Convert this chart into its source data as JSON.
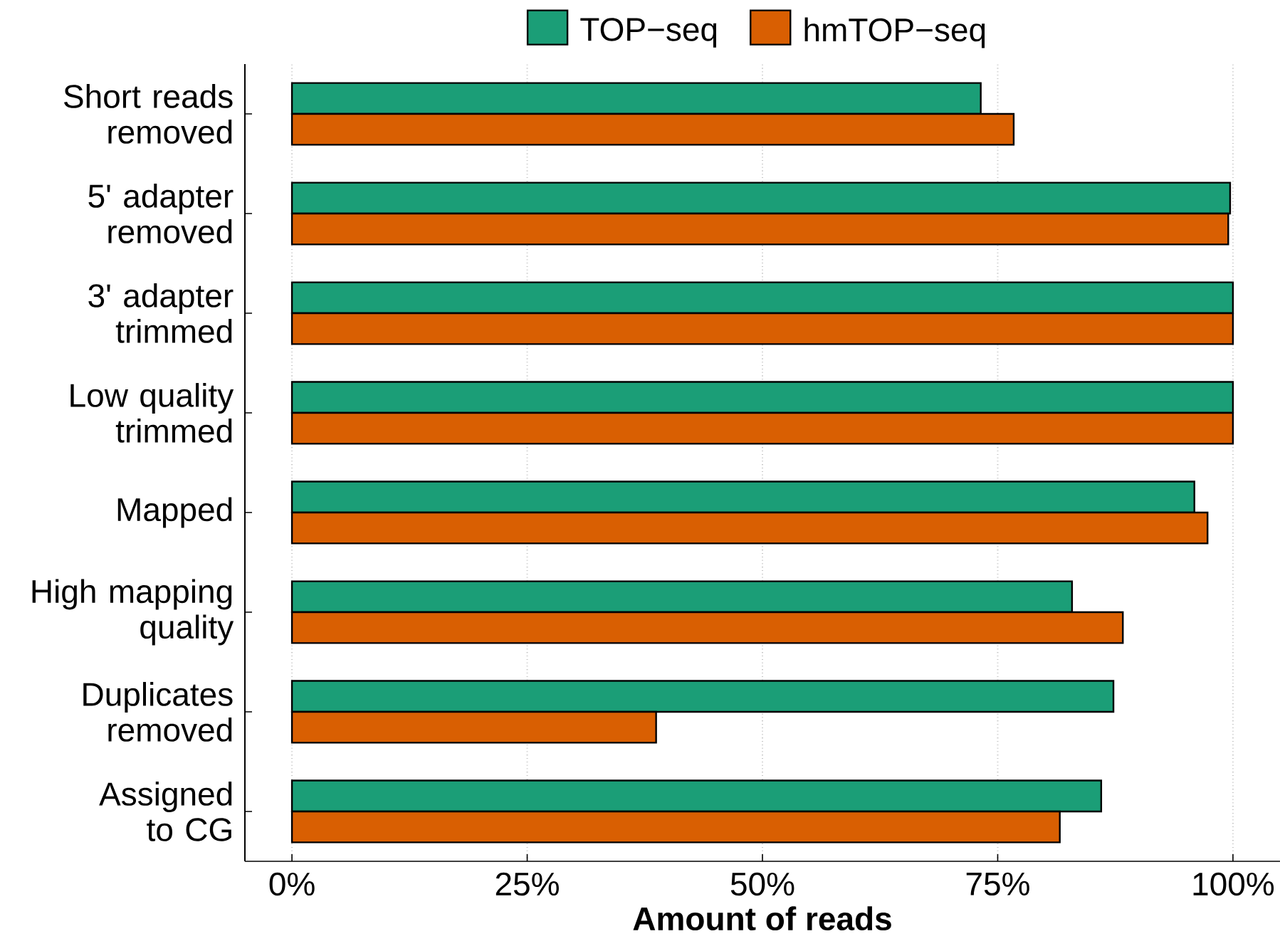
{
  "chart_data": {
    "type": "bar",
    "orientation": "horizontal",
    "xlabel": "Amount of reads",
    "categories": [
      "Short reads removed",
      "5' adapter removed",
      "3' adapter trimmed",
      "Low quality trimmed",
      "Mapped",
      "High mapping quality",
      "Duplicates removed",
      "Assigned to CG"
    ],
    "series": [
      {
        "name": "TOP−seq",
        "color": "#1b9e77",
        "values": [
          73.2,
          99.7,
          100,
          100,
          95.9,
          82.9,
          87.3,
          86.0
        ]
      },
      {
        "name": "hmTOP−seq",
        "color": "#d95f02",
        "values": [
          76.7,
          99.5,
          100,
          100,
          97.3,
          88.3,
          38.7,
          81.6
        ]
      }
    ],
    "xlim": [
      -5,
      105
    ],
    "xticks": [
      {
        "value": 0,
        "label": "0%"
      },
      {
        "value": 25,
        "label": "25%"
      },
      {
        "value": 50,
        "label": "50%"
      },
      {
        "value": 75,
        "label": "75%"
      },
      {
        "value": 100,
        "label": "100%"
      }
    ],
    "grid": "x",
    "legend": "top"
  }
}
